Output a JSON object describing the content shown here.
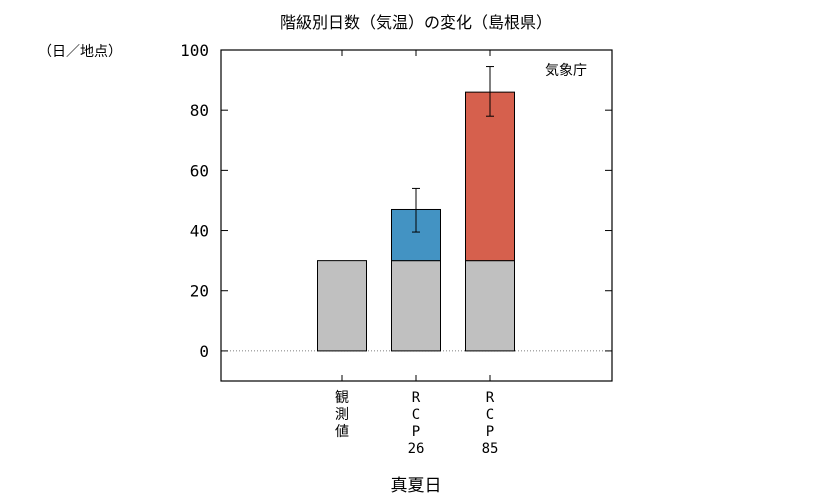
{
  "chart_data": {
    "type": "bar",
    "title": "階級別日数（気温）の変化（島根県）",
    "ylabel": "（日／地点）",
    "xlabel": "真夏日",
    "source": "気象庁",
    "ylim": [
      -10,
      100
    ],
    "yticks": [
      0,
      20,
      40,
      60,
      80,
      100
    ],
    "categories": [
      "観測値",
      "RCP26",
      "RCP85"
    ],
    "category_labels": [
      [
        "観",
        "測",
        "値"
      ],
      [
        "R",
        "C",
        "P",
        "26"
      ],
      [
        "R",
        "C",
        "P",
        "85"
      ]
    ],
    "base_values": [
      30,
      30,
      30
    ],
    "increase_values": [
      null,
      17,
      56
    ],
    "totals": [
      30,
      47,
      86
    ],
    "error_bars": [
      null,
      [
        39.5,
        54
      ],
      [
        78,
        94.5
      ]
    ],
    "colors": {
      "base": "#c0c0c0",
      "increase": [
        "#c0c0c0",
        "#4393c3",
        "#d6604d"
      ]
    },
    "zero_line": "dotted"
  }
}
